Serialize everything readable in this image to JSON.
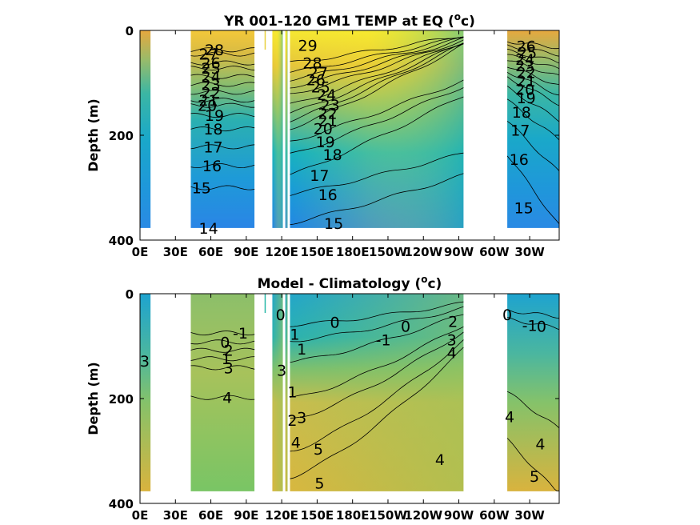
{
  "chart_data": [
    {
      "type": "heatmap",
      "title": "YR 001-120 GM1 TEMP at EQ (",
      "title_superscript": "o",
      "title_suffix": "c)",
      "ylabel": "Depth (m)",
      "xlabel": "",
      "x_ticks": [
        "0E",
        "30E",
        "60E",
        "90E",
        "120E",
        "150E",
        "180E",
        "150W",
        "120W",
        "90W",
        "60W",
        "30W"
      ],
      "y_ticks": [
        "0",
        "200",
        "400"
      ],
      "xlim_deg_east": [
        0,
        355
      ],
      "ylim_m": [
        0,
        400
      ],
      "y_reversed": true,
      "colormap": "parula",
      "color_range": [
        10,
        30
      ],
      "contour_labels": [
        {
          "text": "28",
          "lon": 63,
          "depth": 37
        },
        {
          "text": "27",
          "lon": 58,
          "depth": 45
        },
        {
          "text": "26",
          "lon": 60,
          "depth": 62
        },
        {
          "text": "25",
          "lon": 60,
          "depth": 72
        },
        {
          "text": "24",
          "lon": 60,
          "depth": 88
        },
        {
          "text": "23",
          "lon": 60,
          "depth": 103
        },
        {
          "text": "22",
          "lon": 60,
          "depth": 118
        },
        {
          "text": "21",
          "lon": 58,
          "depth": 133
        },
        {
          "text": "20",
          "lon": 57,
          "depth": 143
        },
        {
          "text": "19",
          "lon": 63,
          "depth": 162
        },
        {
          "text": "18",
          "lon": 62,
          "depth": 188
        },
        {
          "text": "17",
          "lon": 62,
          "depth": 222
        },
        {
          "text": "16",
          "lon": 61,
          "depth": 258
        },
        {
          "text": "15",
          "lon": 52,
          "depth": 300
        },
        {
          "text": "14",
          "lon": 58,
          "depth": 377
        },
        {
          "text": "29",
          "lon": 142,
          "depth": 28
        },
        {
          "text": "28",
          "lon": 146,
          "depth": 62
        },
        {
          "text": "27",
          "lon": 151,
          "depth": 80
        },
        {
          "text": "26",
          "lon": 149,
          "depth": 94
        },
        {
          "text": "25",
          "lon": 153,
          "depth": 108
        },
        {
          "text": "24",
          "lon": 158,
          "depth": 122
        },
        {
          "text": "23",
          "lon": 161,
          "depth": 142
        },
        {
          "text": "22",
          "lon": 159,
          "depth": 158
        },
        {
          "text": "21",
          "lon": 159,
          "depth": 172
        },
        {
          "text": "20",
          "lon": 155,
          "depth": 187
        },
        {
          "text": "19",
          "lon": 157,
          "depth": 212
        },
        {
          "text": "18",
          "lon": 163,
          "depth": 237
        },
        {
          "text": "17",
          "lon": 152,
          "depth": 276
        },
        {
          "text": "16",
          "lon": 159,
          "depth": 313
        },
        {
          "text": "15",
          "lon": 164,
          "depth": 368
        },
        {
          "text": "26",
          "lon": 327,
          "depth": 30
        },
        {
          "text": "25",
          "lon": 328,
          "depth": 42
        },
        {
          "text": "24",
          "lon": 326,
          "depth": 55
        },
        {
          "text": "23",
          "lon": 326,
          "depth": 67
        },
        {
          "text": "22",
          "lon": 327,
          "depth": 80
        },
        {
          "text": "21",
          "lon": 327,
          "depth": 96
        },
        {
          "text": "20",
          "lon": 326,
          "depth": 112
        },
        {
          "text": "19",
          "lon": 327,
          "depth": 128
        },
        {
          "text": "18",
          "lon": 323,
          "depth": 156
        },
        {
          "text": "17",
          "lon": 322,
          "depth": 190
        },
        {
          "text": "16",
          "lon": 321,
          "depth": 246
        },
        {
          "text": "15",
          "lon": 325,
          "depth": 338
        }
      ],
      "gaps_deg_east": [
        [
          9,
          43
        ],
        [
          97,
          112
        ],
        [
          121,
          123
        ],
        [
          125,
          127
        ],
        [
          274,
          311
        ]
      ]
    },
    {
      "type": "heatmap",
      "title": "Model - Climatology (",
      "title_superscript": "o",
      "title_suffix": "c)",
      "ylabel": "Depth (m)",
      "xlabel": "",
      "x_ticks": [
        "0E",
        "30E",
        "60E",
        "90E",
        "120E",
        "150E",
        "180E",
        "150W",
        "120W",
        "90W",
        "60W",
        "30W"
      ],
      "y_ticks": [
        "0",
        "200",
        "400"
      ],
      "xlim_deg_east": [
        0,
        355
      ],
      "ylim_m": [
        0,
        400
      ],
      "y_reversed": true,
      "colormap": "parula",
      "color_range": [
        -4,
        7
      ],
      "contour_labels": [
        {
          "text": "3",
          "lon": 4,
          "depth": 128
        },
        {
          "text": "-1",
          "lon": 85,
          "depth": 75
        },
        {
          "text": "0",
          "lon": 72,
          "depth": 92
        },
        {
          "text": "2",
          "lon": 75,
          "depth": 108
        },
        {
          "text": "1",
          "lon": 73,
          "depth": 124
        },
        {
          "text": "3",
          "lon": 75,
          "depth": 141
        },
        {
          "text": "4",
          "lon": 74,
          "depth": 198
        },
        {
          "text": "0",
          "lon": 119,
          "depth": 40
        },
        {
          "text": "0",
          "lon": 165,
          "depth": 54
        },
        {
          "text": "1",
          "lon": 131,
          "depth": 77
        },
        {
          "text": "1",
          "lon": 137,
          "depth": 105
        },
        {
          "text": "-1",
          "lon": 206,
          "depth": 88
        },
        {
          "text": "0",
          "lon": 225,
          "depth": 62
        },
        {
          "text": "3",
          "lon": 120,
          "depth": 146
        },
        {
          "text": "1",
          "lon": 129,
          "depth": 187
        },
        {
          "text": "2",
          "lon": 129,
          "depth": 241
        },
        {
          "text": "3",
          "lon": 137,
          "depth": 236
        },
        {
          "text": "4",
          "lon": 132,
          "depth": 283
        },
        {
          "text": "5",
          "lon": 151,
          "depth": 296
        },
        {
          "text": "5",
          "lon": 152,
          "depth": 361
        },
        {
          "text": "2",
          "lon": 265,
          "depth": 53
        },
        {
          "text": "3",
          "lon": 264,
          "depth": 88
        },
        {
          "text": "4",
          "lon": 264,
          "depth": 112
        },
        {
          "text": "4",
          "lon": 254,
          "depth": 316
        },
        {
          "text": "0",
          "lon": 311,
          "depth": 40
        },
        {
          "text": "-1",
          "lon": 330,
          "depth": 60
        },
        {
          "text": "0",
          "lon": 340,
          "depth": 62
        },
        {
          "text": "4",
          "lon": 313,
          "depth": 234
        },
        {
          "text": "4",
          "lon": 339,
          "depth": 286
        },
        {
          "text": "5",
          "lon": 334,
          "depth": 348
        }
      ],
      "gaps_deg_east": [
        [
          9,
          43
        ],
        [
          97,
          112
        ],
        [
          121,
          123
        ],
        [
          125,
          127
        ],
        [
          274,
          311
        ]
      ]
    }
  ]
}
